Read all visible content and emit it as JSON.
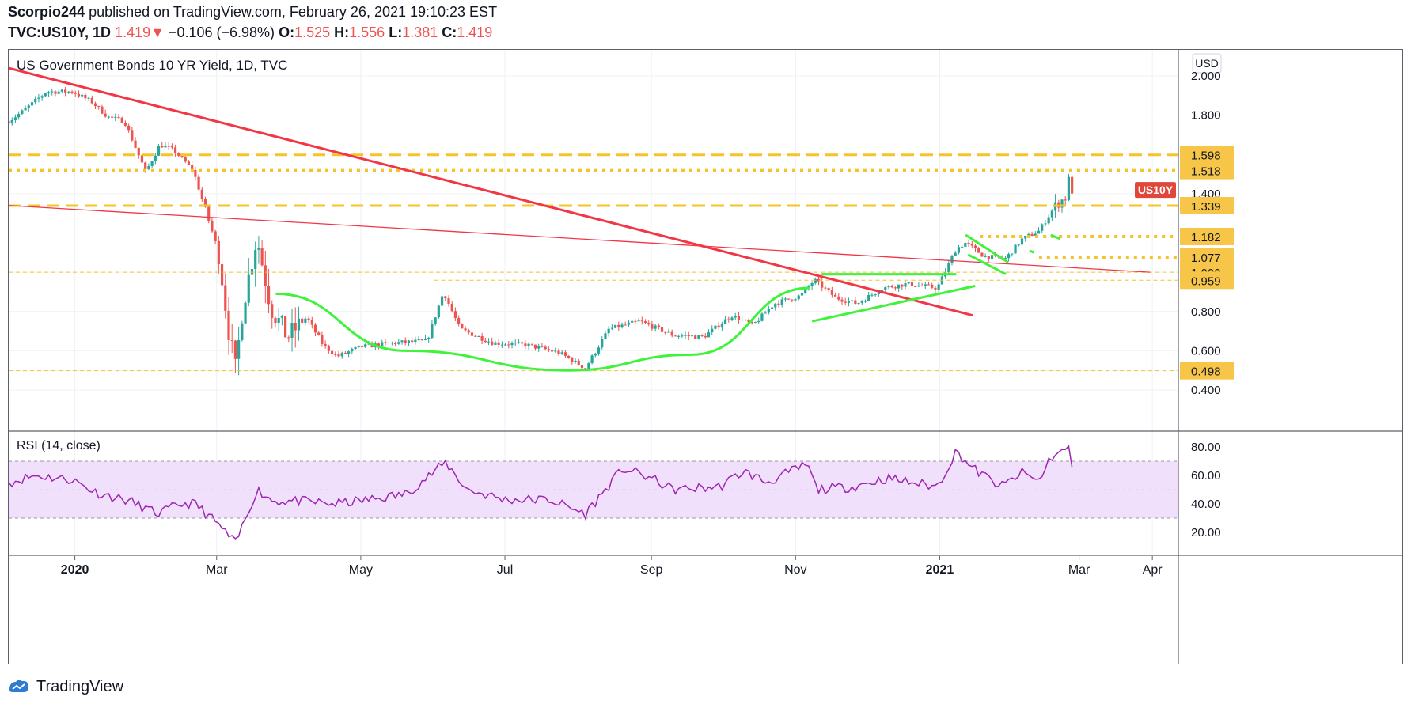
{
  "header": {
    "author": "Scorpio244",
    "published": "published on TradingView.com, February 26, 2021 19:10:23 EST",
    "symbol": "TVC:US10Y, 1D",
    "last": "1.419",
    "change_arrow": "▼",
    "change": "−0.106 (−6.98%)",
    "o_label": "O:",
    "o_value": "1.525",
    "h_label": "H:",
    "h_value": "1.556",
    "l_label": "L:",
    "l_value": "1.381",
    "c_label": "C:",
    "c_value": "1.419"
  },
  "footer": {
    "brand": "TradingView",
    "logo_icon": "tradingview-logo-icon"
  },
  "colors": {
    "up": "#26a69a",
    "down": "#ef5350",
    "text": "#131722",
    "trend_red": "#f23645",
    "pattern_green": "#3ff23a",
    "level_gold": "#f5c32a",
    "label_gold": "#f7c548",
    "rsi": "#9c27b0",
    "rsi_band": "#f1e0fb",
    "price_tag": "#e0463a"
  },
  "chart_data": [
    {
      "type": "candlestick",
      "title": "US Government Bonds 10 YR Yield, 1D, TVC",
      "currency": "USD",
      "x_ticks": [
        "2020",
        "Mar",
        "May",
        "Jul",
        "Sep",
        "Nov",
        "2021",
        "Mar",
        "Apr"
      ],
      "x_tick_dates": [
        "2020-01-01",
        "2020-03-01",
        "2020-05-01",
        "2020-07-01",
        "2020-09-01",
        "2020-11-01",
        "2021-01-01",
        "2021-03-01",
        "2021-04-01"
      ],
      "x_range": [
        "2019-12-04",
        "2021-04-12"
      ],
      "y_ticks": [
        "2.000",
        "1.800",
        "1.400",
        "0.800",
        "0.600",
        "0.400"
      ],
      "y_tick_values": [
        2.0,
        1.8,
        1.4,
        0.8,
        0.6,
        0.4
      ],
      "ylim": [
        0.3,
        2.1
      ],
      "last_price_label": "US10Y",
      "last_price": 1.419,
      "price_path": [
        [
          "2019-12-04",
          1.77
        ],
        [
          "2019-12-10",
          1.82
        ],
        [
          "2019-12-20",
          1.92
        ],
        [
          "2019-12-31",
          1.92
        ],
        [
          "2020-01-08",
          1.87
        ],
        [
          "2020-01-15",
          1.79
        ],
        [
          "2020-01-22",
          1.77
        ],
        [
          "2020-01-31",
          1.51
        ],
        [
          "2020-02-06",
          1.65
        ],
        [
          "2020-02-12",
          1.62
        ],
        [
          "2020-02-20",
          1.52
        ],
        [
          "2020-02-25",
          1.33
        ],
        [
          "2020-03-02",
          1.09
        ],
        [
          "2020-03-06",
          0.71
        ],
        [
          "2020-03-09",
          0.5
        ],
        [
          "2020-03-12",
          0.82
        ],
        [
          "2020-03-18",
          1.18
        ],
        [
          "2020-03-24",
          0.82
        ],
        [
          "2020-03-31",
          0.67
        ],
        [
          "2020-04-08",
          0.77
        ],
        [
          "2020-04-15",
          0.63
        ],
        [
          "2020-04-21",
          0.57
        ],
        [
          "2020-05-01",
          0.62
        ],
        [
          "2020-05-15",
          0.64
        ],
        [
          "2020-05-29",
          0.65
        ],
        [
          "2020-06-05",
          0.9
        ],
        [
          "2020-06-12",
          0.71
        ],
        [
          "2020-06-26",
          0.64
        ],
        [
          "2020-07-10",
          0.63
        ],
        [
          "2020-07-24",
          0.59
        ],
        [
          "2020-08-04",
          0.51
        ],
        [
          "2020-08-14",
          0.71
        ],
        [
          "2020-08-27",
          0.75
        ],
        [
          "2020-09-10",
          0.68
        ],
        [
          "2020-09-23",
          0.67
        ],
        [
          "2020-10-05",
          0.78
        ],
        [
          "2020-10-14",
          0.73
        ],
        [
          "2020-10-23",
          0.84
        ],
        [
          "2020-11-03",
          0.88
        ],
        [
          "2020-11-09",
          0.96
        ],
        [
          "2020-11-18",
          0.87
        ],
        [
          "2020-11-27",
          0.84
        ],
        [
          "2020-12-08",
          0.92
        ],
        [
          "2020-12-18",
          0.94
        ],
        [
          "2020-12-31",
          0.92
        ],
        [
          "2021-01-08",
          1.12
        ],
        [
          "2021-01-12",
          1.15
        ],
        [
          "2021-01-20",
          1.08
        ],
        [
          "2021-01-29",
          1.07
        ],
        [
          "2021-02-05",
          1.17
        ],
        [
          "2021-02-12",
          1.21
        ],
        [
          "2021-02-19",
          1.34
        ],
        [
          "2021-02-24",
          1.39
        ],
        [
          "2021-02-25",
          1.52
        ],
        [
          "2021-02-26",
          1.419
        ]
      ],
      "candles_count": 320,
      "levels": [
        {
          "value": 1.598,
          "label": "1.598",
          "style": "dashed-gold"
        },
        {
          "value": 1.518,
          "label": "1.518",
          "style": "dotted-gold"
        },
        {
          "value": 1.339,
          "label": "1.339",
          "style": "dashed-gold"
        },
        {
          "value": 1.182,
          "label": "1.182",
          "style": "dotted-gold",
          "from": "2021-01-18"
        },
        {
          "value": 1.077,
          "label": "1.077",
          "style": "dotted-gold",
          "from": "2021-02-12"
        },
        {
          "value": 1.0,
          "label": "1.000",
          "style": "thin-dashed-gold"
        },
        {
          "value": 0.959,
          "label": "0.959",
          "style": "thin-dashed-gold",
          "from": "2020-06-01"
        },
        {
          "value": 0.498,
          "label": "0.498",
          "style": "thin-dashed-gold"
        }
      ],
      "trendlines": [
        {
          "color": "red",
          "from": [
            "2019-12-04",
            2.04
          ],
          "to": [
            "2021-01-15",
            0.78
          ]
        },
        {
          "color": "red-thin",
          "from": [
            "2019-12-04",
            1.34
          ],
          "to": [
            "2021-03-31",
            1.0
          ]
        }
      ],
      "patterns": [
        {
          "type": "cup",
          "color": "green",
          "points": [
            [
              "2020-03-26",
              0.89
            ],
            [
              "2020-05-20",
              0.6
            ],
            [
              "2020-07-28",
              0.5
            ],
            [
              "2020-09-18",
              0.58
            ],
            [
              "2020-11-07",
              0.92
            ]
          ]
        },
        {
          "type": "triangle",
          "color": "green",
          "upper": [
            [
              "2020-11-12",
              0.99
            ],
            [
              "2021-01-08",
              0.99
            ]
          ],
          "lower": [
            [
              "2020-11-08",
              0.75
            ],
            [
              "2021-01-16",
              0.93
            ]
          ]
        },
        {
          "type": "flag",
          "color": "green",
          "upper": [
            [
              "2021-01-12",
              1.19
            ],
            [
              "2021-01-30",
              1.05
            ]
          ],
          "lower": [
            [
              "2021-01-13",
              1.09
            ],
            [
              "2021-01-29",
              0.99
            ]
          ]
        },
        {
          "type": "flag",
          "color": "green",
          "upper": [
            [
              "2021-02-17",
              1.19
            ],
            [
              "2021-02-21",
              1.17
            ]
          ],
          "lower": [
            [
              "2021-02-08",
              1.11
            ],
            [
              "2021-02-10",
              1.1
            ]
          ]
        }
      ]
    },
    {
      "type": "line",
      "title": "RSI (14, close)",
      "y_ticks": [
        "80.00",
        "60.00",
        "40.00",
        "20.00"
      ],
      "y_tick_values": [
        80,
        60,
        40,
        20
      ],
      "ylim": [
        5,
        90
      ],
      "band": [
        30,
        70
      ],
      "series": [
        {
          "values_path": [
            [
              "2019-12-04",
              55
            ],
            [
              "2019-12-15",
              60
            ],
            [
              "2019-12-31",
              57
            ],
            [
              "2020-01-10",
              48
            ],
            [
              "2020-01-24",
              42
            ],
            [
              "2020-02-05",
              33
            ],
            [
              "2020-02-15",
              40
            ],
            [
              "2020-02-21",
              40
            ],
            [
              "2020-03-02",
              25
            ],
            [
              "2020-03-09",
              12
            ],
            [
              "2020-03-18",
              50
            ],
            [
              "2020-03-25",
              42
            ],
            [
              "2020-04-05",
              42
            ],
            [
              "2020-04-20",
              40
            ],
            [
              "2020-05-05",
              43
            ],
            [
              "2020-05-20",
              47
            ],
            [
              "2020-06-06",
              69
            ],
            [
              "2020-06-15",
              50
            ],
            [
              "2020-07-01",
              43
            ],
            [
              "2020-07-20",
              43
            ],
            [
              "2020-08-04",
              33
            ],
            [
              "2020-08-20",
              65
            ],
            [
              "2020-09-01",
              58
            ],
            [
              "2020-09-10",
              50
            ],
            [
              "2020-09-30",
              52
            ],
            [
              "2020-10-10",
              63
            ],
            [
              "2020-10-20",
              55
            ],
            [
              "2020-11-06",
              68
            ],
            [
              "2020-11-10",
              50
            ],
            [
              "2020-11-25",
              52
            ],
            [
              "2020-12-10",
              58
            ],
            [
              "2020-12-31",
              52
            ],
            [
              "2021-01-08",
              77
            ],
            [
              "2021-01-15",
              65
            ],
            [
              "2021-01-27",
              52
            ],
            [
              "2021-02-05",
              62
            ],
            [
              "2021-02-12",
              56
            ],
            [
              "2021-02-17",
              73
            ],
            [
              "2021-02-25",
              79
            ],
            [
              "2021-02-26",
              66
            ]
          ]
        }
      ]
    }
  ]
}
